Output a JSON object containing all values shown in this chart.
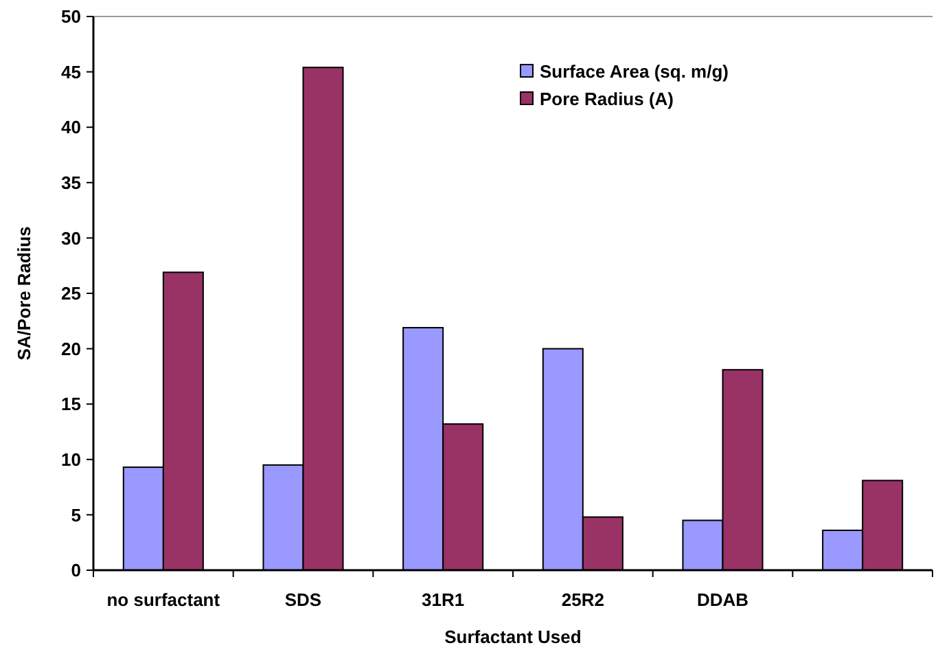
{
  "chart_data": {
    "type": "bar",
    "xlabel": "Surfactant Used",
    "ylabel": "SA/Pore Radius",
    "categories": [
      "no surfactant",
      "SDS",
      "31R1",
      "25R2",
      "DDAB",
      null
    ],
    "series": [
      {
        "name": "Surface Area (sq. m/g)",
        "color": "#9999ff",
        "values": [
          9.3,
          9.5,
          21.9,
          20.0,
          4.5,
          3.6
        ]
      },
      {
        "name": "Pore Radius (A)",
        "color": "#993366",
        "values": [
          26.9,
          45.4,
          13.2,
          4.8,
          18.1,
          8.1
        ]
      }
    ],
    "ylim": [
      0,
      50
    ],
    "yticks": [
      0,
      5,
      10,
      15,
      20,
      25,
      30,
      35,
      40,
      45,
      50
    ],
    "grid": false,
    "legend": "top right"
  }
}
